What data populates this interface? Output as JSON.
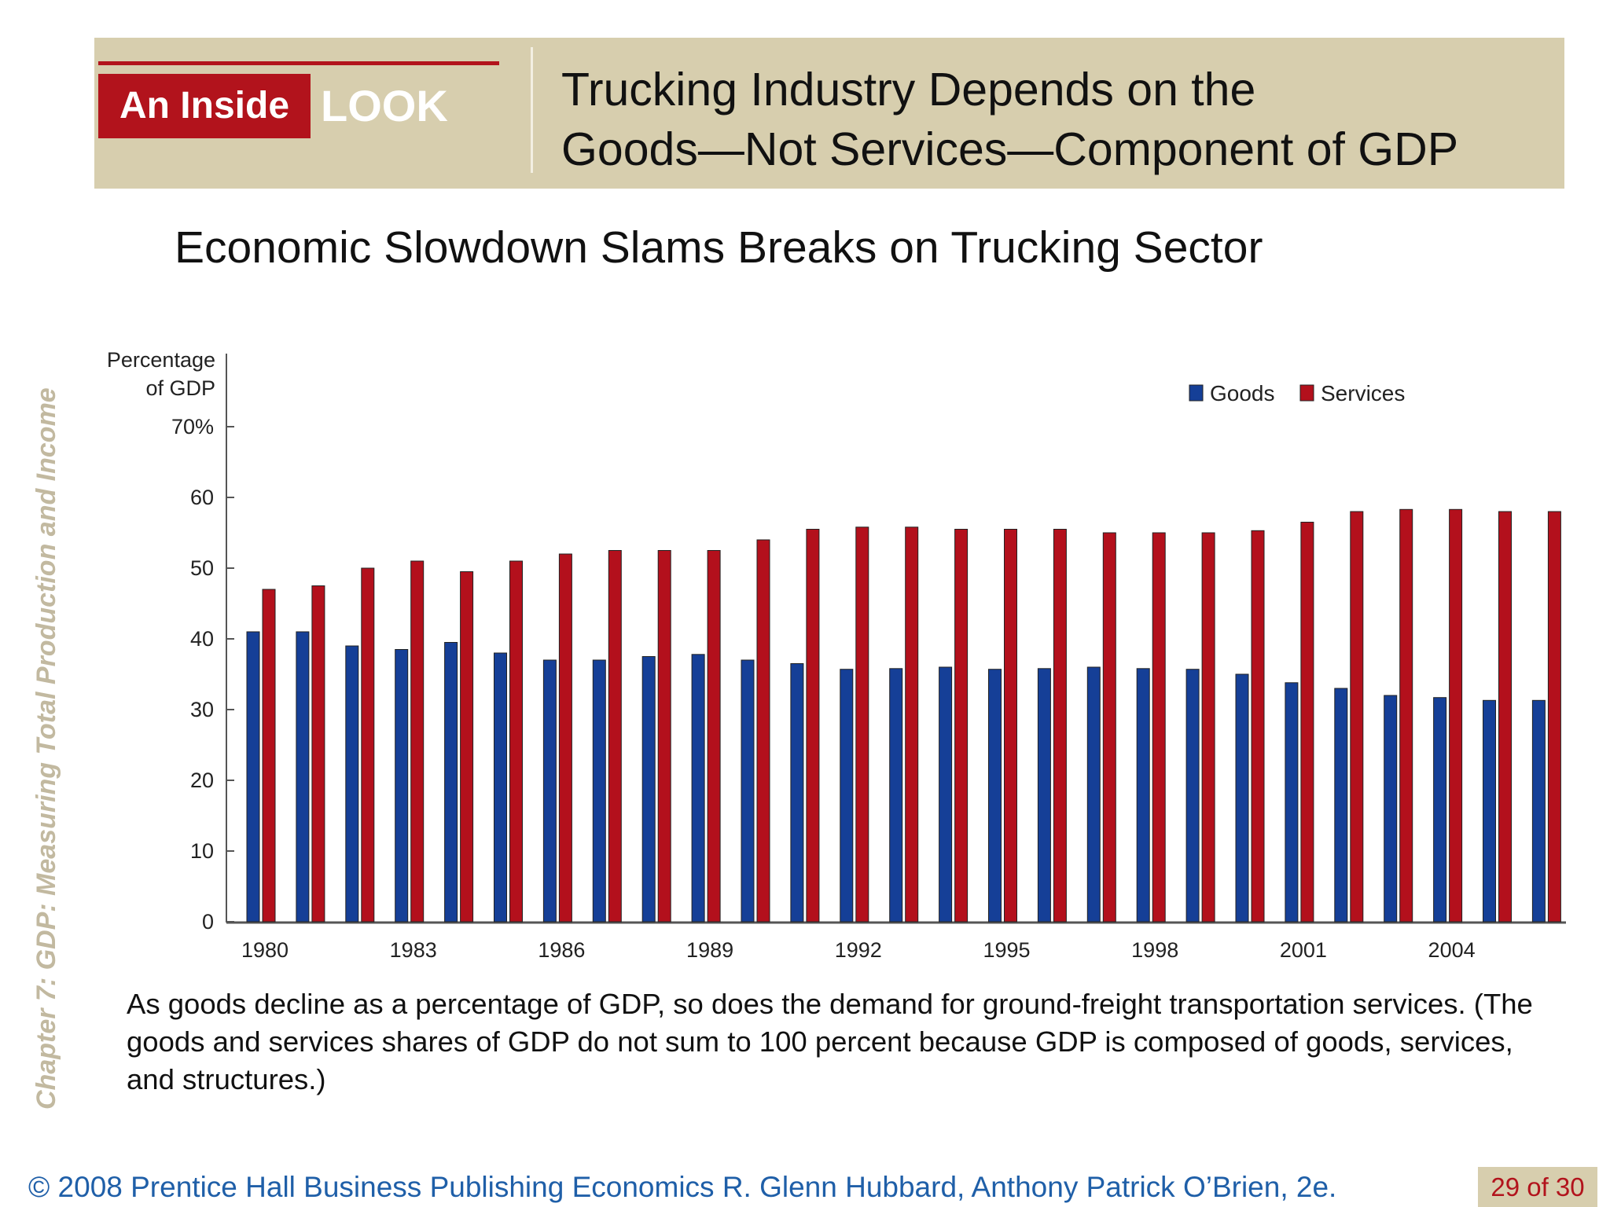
{
  "side_label": "Chapter 7:  GDP:  Measuring Total Production and Income",
  "banner": {
    "tag_inside": "An Inside",
    "tag_look": "LOOK",
    "title_line1": "Trucking Industry Depends on the",
    "title_line2": "Goods—Not Services—Component of GDP"
  },
  "subtitle": "Economic Slowdown Slams Breaks on Trucking Sector",
  "caption": "As goods decline as a percentage of GDP, so does the demand for ground-freight transportation services. (The goods and services shares of GDP  do not sum to 100 percent because GDP is composed of goods, services, and structures.)",
  "footer": {
    "text": "© 2008 Prentice Hall Business Publishing   Economics  R. Glenn Hubbard, Anthony Patrick O’Brien, 2e.",
    "page": "29 of 30"
  },
  "colors": {
    "goods": "#153f97",
    "services": "#b3101c",
    "banner": "#d7ceae",
    "accent_red": "#b2131c"
  },
  "chart_data": {
    "type": "bar",
    "ylabel": "Percentage\nof GDP",
    "ylim": [
      0,
      70
    ],
    "yticks": [
      0,
      10,
      20,
      30,
      40,
      50,
      60,
      70
    ],
    "ytick_labels": [
      "0",
      "10",
      "20",
      "30",
      "40",
      "50",
      "60",
      "70%"
    ],
    "grid": false,
    "legend_position": "top-right",
    "categories": [
      "1980",
      "1981",
      "1982",
      "1983",
      "1984",
      "1985",
      "1986",
      "1987",
      "1988",
      "1989",
      "1990",
      "1991",
      "1992",
      "1993",
      "1994",
      "1995",
      "1996",
      "1997",
      "1998",
      "1999",
      "2000",
      "2001",
      "2002",
      "2003",
      "2004",
      "2005",
      "2006"
    ],
    "x_tick_labels": [
      "1980",
      "1983",
      "1986",
      "1989",
      "1992",
      "1995",
      "1998",
      "2001",
      "2004"
    ],
    "series": [
      {
        "name": "Goods",
        "values": [
          41,
          41,
          39,
          38.5,
          39.5,
          38,
          37,
          37,
          37.5,
          37.8,
          37,
          36.5,
          35.7,
          35.8,
          36,
          35.7,
          35.8,
          36,
          35.8,
          35.7,
          35,
          33.8,
          33,
          32,
          31.7,
          31.3,
          31.3
        ]
      },
      {
        "name": "Services",
        "values": [
          47,
          47.5,
          50,
          51,
          49.5,
          51,
          52,
          52.5,
          52.5,
          52.5,
          54,
          55.5,
          55.8,
          55.8,
          55.5,
          55.5,
          55.5,
          55,
          55,
          55,
          55.3,
          56.5,
          58,
          58.3,
          58.3,
          58,
          58
        ]
      }
    ]
  }
}
